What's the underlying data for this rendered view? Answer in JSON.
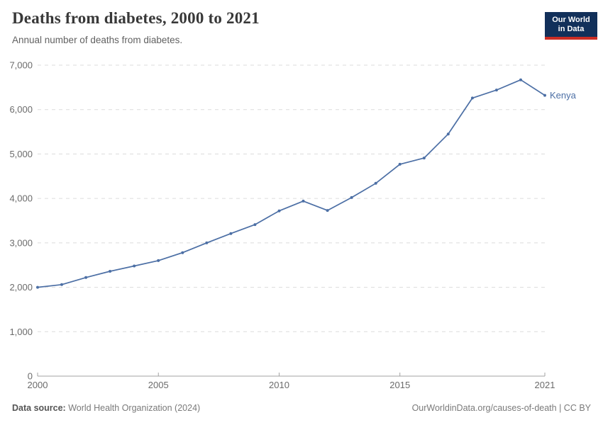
{
  "header": {
    "title": "Deaths from diabetes, 2000 to 2021",
    "subtitle": "Annual number of deaths from diabetes.",
    "logo": {
      "line1": "Our World",
      "line2": "in Data",
      "bg_color": "#12305a",
      "accent_color": "#cb2d24"
    }
  },
  "chart_data": {
    "type": "line",
    "title": "Deaths from diabetes, 2000 to 2021",
    "subtitle": "Annual number of deaths from diabetes.",
    "xlabel": "",
    "ylabel": "",
    "x": [
      2000,
      2001,
      2002,
      2003,
      2004,
      2005,
      2006,
      2007,
      2008,
      2009,
      2010,
      2011,
      2012,
      2013,
      2014,
      2015,
      2016,
      2017,
      2018,
      2019,
      2020,
      2021
    ],
    "series": [
      {
        "name": "Kenya",
        "color": "#4c6fa5",
        "values": [
          2000,
          2060,
          2220,
          2360,
          2480,
          2600,
          2780,
          3000,
          3210,
          3410,
          3720,
          3940,
          3730,
          4020,
          4340,
          4770,
          4910,
          5450,
          6260,
          6440,
          6670,
          6320
        ]
      }
    ],
    "ylim": [
      0,
      7000
    ],
    "yticks": [
      0,
      1000,
      2000,
      3000,
      4000,
      5000,
      6000,
      7000
    ],
    "xticks": [
      2000,
      2005,
      2010,
      2015,
      2021
    ],
    "grid": "horizontal-dashed",
    "gridline_color": "#dcdcdc",
    "axis_color": "#a3a3a3",
    "tick_label_color": "#6b6b6b",
    "legend": "end-of-line-label"
  },
  "footer": {
    "datasource_label": "Data source:",
    "datasource_value": " World Health Organization (2024)",
    "credit": "OurWorldinData.org/causes-of-death | CC BY"
  }
}
